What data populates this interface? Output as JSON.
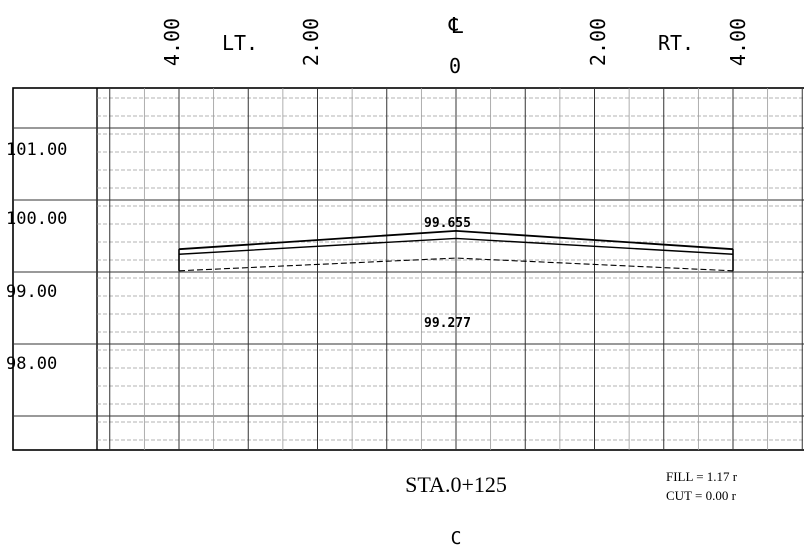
{
  "top_labels": {
    "left_offset": "4.00",
    "left_side": "LT.",
    "left_mid_offset": "2.00",
    "centerline_symbol": "℄",
    "center_offset": "0",
    "right_mid_offset": "2.00",
    "right_side": "RT.",
    "right_offset": "4.00"
  },
  "elevation_labels": [
    "101.00",
    "100.00",
    "99.00",
    "98.00"
  ],
  "annotations": {
    "top_elevation": "99.655",
    "bottom_elevation": "99.277"
  },
  "station": "STA.0+125",
  "quantities": {
    "fill": "FILL =  1.17 r",
    "cut": "CUT =  0.00 r"
  },
  "footer_label": "C",
  "profile": {
    "offsets": [
      -4.0,
      0.0,
      4.0
    ],
    "finished_surface": [
      99.4,
      99.655,
      99.4
    ],
    "subgrade": [
      99.33,
      99.55,
      99.33
    ],
    "existing_ground": [
      99.1,
      99.277,
      99.1
    ],
    "side_bottom_elevation": 99.1
  },
  "colors": {
    "line": "#000000",
    "grid": "#333333",
    "minor_grid": "#9a9a9a"
  }
}
